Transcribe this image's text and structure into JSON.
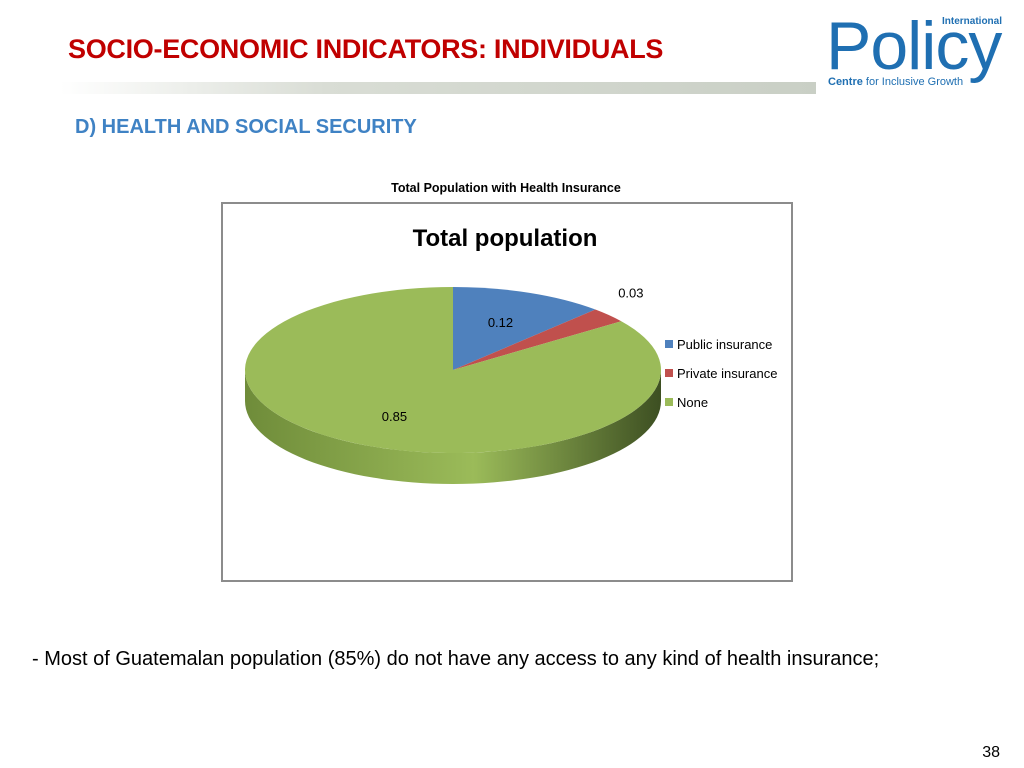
{
  "slide": {
    "title": "SOCIO-ECONOMIC INDICATORS: INDIVIDUALS",
    "section_heading": "D) HEALTH AND SOCIAL SECURITY",
    "chart_caption": "Total Population with Health Insurance",
    "bullet": "- Most of Guatemalan population (85%) do not have any access to any kind of health insurance;",
    "page_number": "38"
  },
  "logo": {
    "word": "Policy",
    "superscript": "International",
    "sub_bold": "Centre",
    "sub_rest": " for Inclusive Growth"
  },
  "chart_data": {
    "type": "pie",
    "title": "Total population",
    "slices": [
      {
        "label": "Public insurance",
        "value": 0.12,
        "display": "0.12",
        "color": "#4f81bd",
        "side": "#3a6394"
      },
      {
        "label": "Private insurance",
        "value": 0.03,
        "display": "0.03",
        "color": "#c0504d",
        "side": "#8f3a38"
      },
      {
        "label": "None",
        "value": 0.85,
        "display": "0.85",
        "color": "#9bbb59",
        "side": "#6f8c3a"
      }
    ],
    "legend_position": "right",
    "three_d": true
  }
}
